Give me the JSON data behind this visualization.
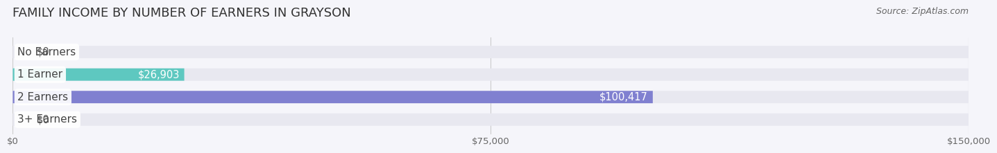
{
  "title": "FAMILY INCOME BY NUMBER OF EARNERS IN GRAYSON",
  "source": "Source: ZipAtlas.com",
  "categories": [
    "No Earners",
    "1 Earner",
    "2 Earners",
    "3+ Earners"
  ],
  "values": [
    0,
    26903,
    100417,
    0
  ],
  "bar_colors": [
    "#c9a0d0",
    "#5ec8c0",
    "#8080d0",
    "#f0a0b8"
  ],
  "label_colors": [
    "#c9a0d0",
    "#5ec8c0",
    "#8080d0",
    "#f0a0b8"
  ],
  "track_color": "#e8e8f0",
  "xlim": [
    0,
    150000
  ],
  "xticks": [
    0,
    75000,
    150000
  ],
  "xtick_labels": [
    "$0",
    "$75,000",
    "$150,000"
  ],
  "value_labels": [
    "$0",
    "$26,903",
    "$100,417",
    "$0"
  ],
  "background_color": "#f5f5fa",
  "bar_height": 0.55,
  "title_fontsize": 13,
  "label_fontsize": 11,
  "value_fontsize": 10.5,
  "source_fontsize": 9
}
